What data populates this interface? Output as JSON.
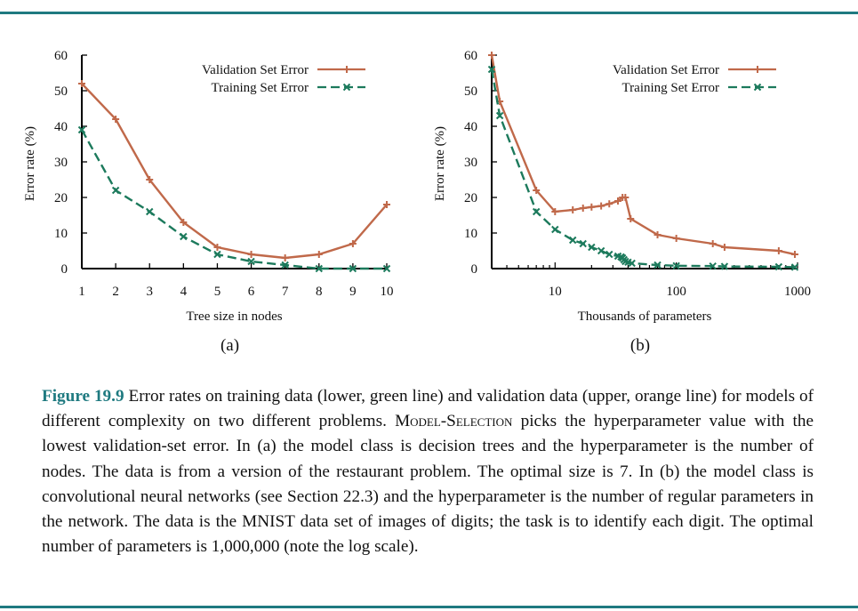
{
  "colors": {
    "validation": "#c0694a",
    "training": "#1c7a5c",
    "rule": "#1f7a80"
  },
  "chart_data": [
    {
      "type": "line",
      "panel_label": "(a)",
      "xlabel": "Tree size in nodes",
      "ylabel": "Error rate (%)",
      "xscale": "linear",
      "xlim": [
        1,
        10
      ],
      "ylim": [
        0,
        60
      ],
      "xticks": [
        1,
        2,
        3,
        4,
        5,
        6,
        7,
        8,
        9,
        10
      ],
      "yticks": [
        0,
        10,
        20,
        30,
        40,
        50,
        60
      ],
      "legend_position": "top-right",
      "grid": false,
      "series": [
        {
          "name": "Validation Set Error",
          "marker": "+",
          "style": "solid",
          "x": [
            1,
            2,
            3,
            4,
            5,
            6,
            7,
            8,
            9,
            10
          ],
          "y": [
            52,
            42,
            25,
            13,
            6,
            4,
            3,
            4,
            7,
            18
          ]
        },
        {
          "name": "Training Set Error",
          "marker": "x",
          "style": "dashed",
          "x": [
            1,
            2,
            3,
            4,
            5,
            6,
            7,
            8,
            9,
            10
          ],
          "y": [
            39,
            22,
            16,
            9,
            4,
            2,
            1,
            0,
            0,
            0
          ]
        }
      ]
    },
    {
      "type": "line",
      "panel_label": "(b)",
      "xlabel": "Thousands of parameters",
      "ylabel": "Error rate (%)",
      "xscale": "log",
      "xlim": [
        3,
        1000
      ],
      "ylim": [
        0,
        60
      ],
      "xticks": [
        10,
        100,
        1000
      ],
      "yticks": [
        0,
        10,
        20,
        30,
        40,
        50,
        60
      ],
      "legend_position": "top-right",
      "grid": false,
      "series": [
        {
          "name": "Validation Set Error",
          "marker": "+",
          "style": "solid",
          "x": [
            3,
            3.5,
            7,
            10,
            14,
            17,
            20,
            24,
            28,
            33,
            36,
            38,
            42,
            70,
            100,
            200,
            250,
            700,
            950
          ],
          "y": [
            60,
            47,
            22,
            16,
            16.5,
            17,
            17.3,
            17.6,
            18.2,
            19,
            20,
            20,
            14,
            9.5,
            8.5,
            7,
            6,
            5,
            4
          ]
        },
        {
          "name": "Training Set Error",
          "marker": "x",
          "style": "dashed",
          "x": [
            3,
            3.5,
            7,
            10,
            14,
            17,
            20,
            24,
            28,
            33,
            35,
            36,
            37,
            38,
            40,
            43,
            70,
            100,
            200,
            250,
            700,
            950
          ],
          "y": [
            56,
            43,
            16,
            11,
            8,
            7,
            6,
            5,
            4,
            3.5,
            3.3,
            3,
            2.5,
            2,
            1.8,
            1.5,
            1,
            0.8,
            0.7,
            0.6,
            0.5,
            0.4
          ]
        }
      ]
    }
  ],
  "caption": {
    "figure_label": "Figure 19.9",
    "text_1": "Error rates on training data (lower, green line) and validation data (upper, orange line) for models of different complexity on two different problems.",
    "algorithm_name": "Model-Selection",
    "text_2": "picks the hyperparameter value with the lowest validation-set error. In (a) the model class is decision trees and the hyperparameter is the number of nodes. The data is from a version of the restaurant problem. The optimal size is 7. In (b) the model class is convolutional neural networks (see Section 22.3) and the hyperparameter is the number of regular parameters in the network. The data is the MNIST data set of images of digits; the task is to identify each digit. The optimal number of parameters is 1,000,000 (note the log scale)."
  }
}
